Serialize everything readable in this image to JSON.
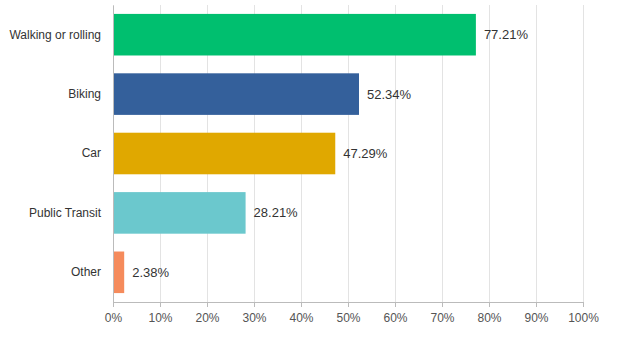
{
  "chart_data": {
    "type": "bar",
    "orientation": "horizontal",
    "categories": [
      "Walking or rolling",
      "Biking",
      "Car",
      "Public Transit",
      "Other"
    ],
    "values": [
      77.21,
      52.34,
      47.29,
      28.21,
      2.38
    ],
    "value_labels": [
      "77.21%",
      "52.34%",
      "47.29%",
      "28.21%",
      "2.38%"
    ],
    "colors": [
      "#00bf6f",
      "#34609b",
      "#e0a800",
      "#6bc8cd",
      "#f58b5c"
    ],
    "xlim": [
      0,
      100
    ],
    "xticks": [
      {
        "value": 0,
        "label": "0%"
      },
      {
        "value": 10,
        "label": "10%"
      },
      {
        "value": 20,
        "label": "20%"
      },
      {
        "value": 30,
        "label": "30%"
      },
      {
        "value": 40,
        "label": "40%"
      },
      {
        "value": 50,
        "label": "50%"
      },
      {
        "value": 60,
        "label": "60%"
      },
      {
        "value": 70,
        "label": "70%"
      },
      {
        "value": 80,
        "label": "80%"
      },
      {
        "value": 90,
        "label": "90%"
      },
      {
        "value": 100,
        "label": "100%"
      }
    ],
    "grid": true,
    "data_labels": true
  }
}
